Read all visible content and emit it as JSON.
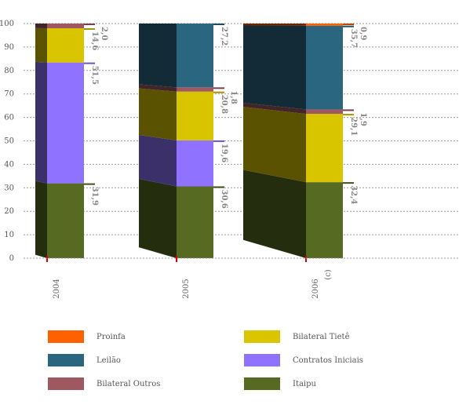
{
  "chart_data": {
    "type": "bar",
    "stacked": true,
    "three_d": true,
    "title": "",
    "xlabel": "",
    "ylabel": "",
    "ylim": [
      0,
      100
    ],
    "yticks": [
      0,
      10,
      20,
      30,
      40,
      50,
      60,
      70,
      80,
      90,
      100
    ],
    "grid": "horizontal dotted",
    "categories": [
      "2004",
      "2005",
      "2006"
    ],
    "category_notes": [
      "",
      "",
      "(c)"
    ],
    "series": [
      {
        "name": "Itaipu",
        "color": "#566a22",
        "values": [
          31.9,
          30.6,
          32.4
        ]
      },
      {
        "name": "Contratos Iniciais",
        "color": "#8f72ff",
        "values": [
          51.5,
          19.6,
          0
        ]
      },
      {
        "name": "Bilateral Tietê",
        "color": "#d9c400",
        "values": [
          14.6,
          20.8,
          29.1
        ]
      },
      {
        "name": "Bilateral Outros",
        "color": "#a05860",
        "values": [
          2.0,
          1.8,
          1.9
        ]
      },
      {
        "name": "Leilão",
        "color": "#2b6680",
        "values": [
          0,
          27.2,
          35.7
        ]
      },
      {
        "name": "Proinfa",
        "color": "#ff6000",
        "values": [
          0,
          0,
          0.9
        ]
      }
    ],
    "data_labels": [
      [
        "31,9",
        "51,5",
        "14,6",
        "2,0",
        "",
        ""
      ],
      [
        "30,6",
        "19,6",
        "20,8",
        "1,8",
        "27,2",
        ""
      ],
      [
        "32,4",
        "",
        "29,1",
        "1,9",
        "35,7",
        "0,9"
      ]
    ],
    "legend": {
      "placement": "bottom",
      "columns": 2,
      "order": [
        "Proinfa",
        "Bilateral Tietê",
        "Leilão",
        "Contratos Iniciais",
        "Bilateral Outros",
        "Itaipu"
      ]
    }
  }
}
